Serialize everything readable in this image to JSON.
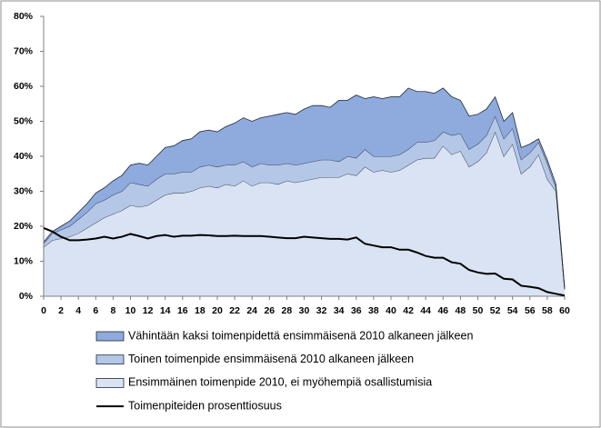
{
  "chart_data": {
    "type": "stacked-area-line",
    "x": [
      0,
      1,
      2,
      3,
      4,
      5,
      6,
      7,
      8,
      9,
      10,
      11,
      12,
      13,
      14,
      15,
      16,
      17,
      18,
      19,
      20,
      21,
      22,
      23,
      24,
      25,
      26,
      27,
      28,
      29,
      30,
      31,
      32,
      33,
      34,
      35,
      36,
      37,
      38,
      39,
      40,
      41,
      42,
      43,
      44,
      45,
      46,
      47,
      48,
      49,
      50,
      51,
      52,
      53,
      54,
      55,
      56,
      57,
      58,
      59,
      60
    ],
    "xlim": [
      0,
      60
    ],
    "xticks": [
      0,
      2,
      4,
      6,
      8,
      10,
      12,
      14,
      16,
      18,
      20,
      22,
      24,
      26,
      28,
      30,
      32,
      34,
      36,
      38,
      40,
      42,
      44,
      46,
      48,
      50,
      52,
      54,
      56,
      58,
      60
    ],
    "ylim": [
      0,
      80
    ],
    "yticks": [
      {
        "value": 0,
        "label": "0%"
      },
      {
        "value": 10,
        "label": "10%"
      },
      {
        "value": 20,
        "label": "20%"
      },
      {
        "value": 30,
        "label": "30%"
      },
      {
        "value": 40,
        "label": "40%"
      },
      {
        "value": 50,
        "label": "50%"
      },
      {
        "value": 60,
        "label": "60%"
      },
      {
        "value": 70,
        "label": "70%"
      },
      {
        "value": 80,
        "label": "80%"
      }
    ],
    "legend": "bottom",
    "series": [
      {
        "name": "Vähintään kaksi toimenpidettä ensimmäisenä 2010 alkaneen jälkeen",
        "type": "area",
        "color": "#8faadc",
        "values": [
          0.5,
          0.5,
          1,
          1.5,
          2,
          2.5,
          3,
          3.5,
          4,
          4.5,
          5,
          6,
          6,
          6.5,
          7.5,
          8,
          9,
          9.5,
          10,
          10,
          10,
          11,
          12,
          12.5,
          13,
          13,
          14,
          14.5,
          14.5,
          14.5,
          15.5,
          16,
          15.5,
          15,
          17.5,
          16,
          18,
          14.5,
          17,
          16.5,
          17,
          16.5,
          17.5,
          14.5,
          14.5,
          13.5,
          12.5,
          11,
          9.5,
          9.5,
          8.5,
          7.5,
          5.5,
          5,
          4.5,
          3.5,
          2.5,
          1,
          1,
          1,
          0.5
        ]
      },
      {
        "name": "Toinen toimenpide ensimmäisenä 2010 alkaneen jälkeen",
        "type": "area",
        "color": "#b4c7e7",
        "values": [
          1,
          2,
          2.5,
          3,
          4,
          4.5,
          5.5,
          5,
          5.5,
          5.5,
          6.5,
          6.5,
          5.5,
          6,
          6,
          5.5,
          6,
          5.5,
          6,
          6,
          6,
          5.5,
          6,
          5.5,
          5.5,
          5.5,
          5,
          5.5,
          5,
          5,
          5,
          5,
          5,
          5,
          4.5,
          5,
          5,
          5,
          4.5,
          4,
          4.5,
          4.5,
          4.5,
          5,
          4.5,
          5,
          4,
          5.5,
          5,
          5,
          5,
          5,
          4.5,
          5,
          4.5,
          4,
          4,
          3.5,
          4.5,
          1,
          0
        ]
      },
      {
        "name": "Ensimmäinen toimenpide 2010, ei myöhempiä osallistumisia",
        "type": "area",
        "color": "#dae3f3",
        "values": [
          14,
          16,
          16.5,
          17,
          18,
          19.5,
          21,
          22.5,
          23.5,
          24.5,
          26,
          25.5,
          26,
          27.5,
          29,
          29.5,
          29.5,
          30,
          31,
          31.5,
          31,
          32,
          31.5,
          33,
          31.5,
          32.5,
          32.5,
          32,
          33,
          32.5,
          33,
          33.5,
          34,
          34,
          34,
          35,
          34.5,
          37,
          35.5,
          36,
          35.5,
          36,
          37.5,
          39,
          39.5,
          39.5,
          43,
          40.5,
          41.5,
          37,
          38.5,
          41,
          47,
          40,
          43.5,
          35,
          37,
          40.5,
          33.5,
          30,
          2
        ]
      },
      {
        "name": "Toimenpiteiden prosenttiosuus",
        "type": "line",
        "color": "#000000",
        "values": [
          19.5,
          18.5,
          17,
          16,
          16,
          16.2,
          16.5,
          17,
          16.5,
          17,
          17.8,
          17.2,
          16.5,
          17.2,
          17.5,
          17,
          17.3,
          17.3,
          17.5,
          17.4,
          17.2,
          17.2,
          17.3,
          17.2,
          17.2,
          17.2,
          17,
          16.8,
          16.6,
          16.6,
          17,
          16.8,
          16.6,
          16.4,
          16.4,
          16.2,
          16.8,
          15,
          14.5,
          14,
          14,
          13.3,
          13.3,
          12.5,
          11.5,
          11,
          11,
          9.7,
          9.3,
          7.5,
          6.8,
          6.4,
          6.5,
          5,
          4.8,
          3,
          2.7,
          2.3,
          1.2,
          0.7,
          0.2
        ]
      }
    ]
  }
}
